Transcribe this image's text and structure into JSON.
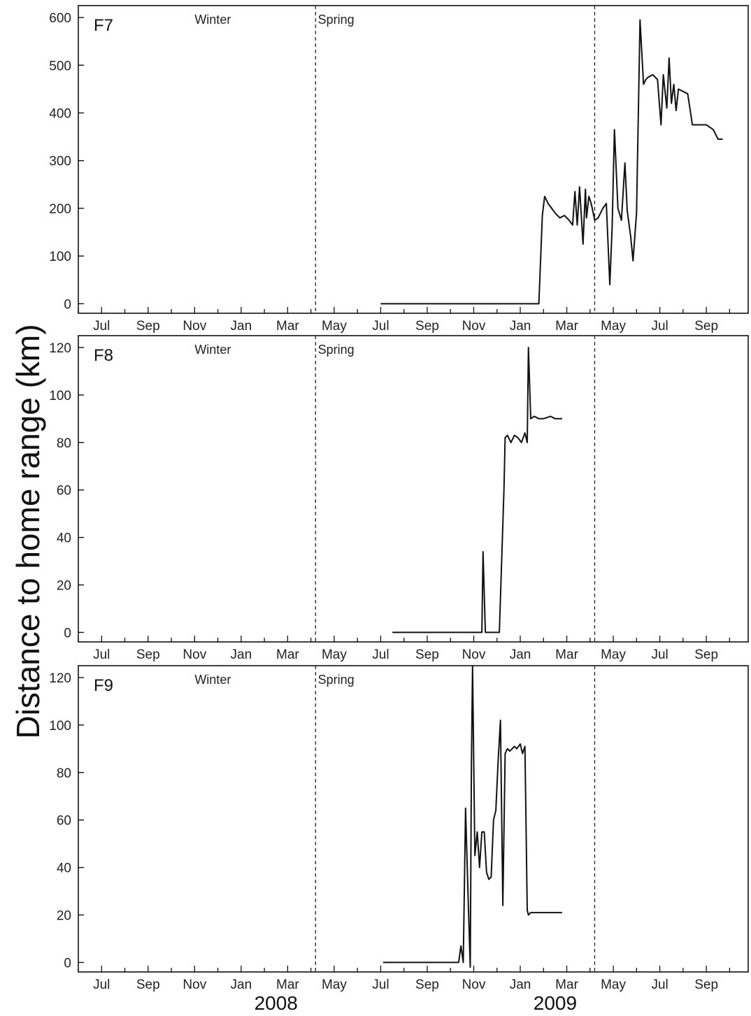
{
  "chart_data": {
    "type": "line",
    "ylabel": "Distance to home range (km)",
    "years": [
      {
        "label": "2008",
        "center_month": 8.5
      },
      {
        "label": "2009",
        "center_month": 20.5
      }
    ],
    "x_month_ticks": [
      "Jul",
      "Sep",
      "Nov",
      "Jan",
      "Mar",
      "May",
      "Jul",
      "Sep",
      "Nov",
      "Jan",
      "Mar",
      "May",
      "Jul",
      "Sep"
    ],
    "x_month_tick_positions": [
      1,
      3,
      5,
      7,
      9,
      11,
      13,
      15,
      17,
      19,
      21,
      23,
      25,
      27
    ],
    "xlim": [
      0,
      28.8
    ],
    "season_dividers": [
      10.2,
      22.2
    ],
    "season_labels": [
      {
        "text": "Winter",
        "x": 5.0
      },
      {
        "text": "Spring",
        "x": 10.3
      }
    ],
    "panels": [
      {
        "name": "F7",
        "ylim": [
          -20,
          625
        ],
        "yticks": [
          0,
          100,
          200,
          300,
          400,
          500,
          600
        ],
        "series": [
          {
            "x": [
              13.0,
              15.0,
              17.0,
              19.0,
              19.8,
              19.95,
              20.05,
              20.2,
              20.35,
              20.5,
              20.7,
              20.9,
              21.1,
              21.25,
              21.35,
              21.45,
              21.55,
              21.7,
              21.8,
              21.85,
              21.95,
              22.05,
              22.2,
              22.35,
              22.55,
              22.7,
              22.85,
              22.95,
              23.05,
              23.2,
              23.35,
              23.5,
              23.6,
              23.75,
              23.85,
              24.0,
              24.15,
              24.3,
              24.4,
              24.5,
              24.7,
              24.9,
              25.05,
              25.15,
              25.3,
              25.4,
              25.5,
              25.6,
              25.7,
              25.8,
              26.0,
              26.2,
              26.4,
              26.6,
              26.8,
              27.0,
              27.3,
              27.5,
              27.7
            ],
            "y": [
              0,
              0,
              0,
              0,
              0,
              185,
              225,
              210,
              200,
              190,
              180,
              185,
              175,
              165,
              235,
              165,
              245,
              125,
              240,
              180,
              225,
              210,
              175,
              180,
              200,
              210,
              40,
              160,
              365,
              200,
              175,
              295,
              195,
              140,
              90,
              190,
              595,
              460,
              470,
              475,
              480,
              470,
              375,
              480,
              410,
              515,
              420,
              460,
              405,
              450,
              445,
              440,
              375,
              375,
              375,
              375,
              365,
              345,
              345
            ]
          }
        ]
      },
      {
        "name": "F8",
        "ylim": [
          -4,
          125
        ],
        "yticks": [
          0,
          20,
          40,
          60,
          80,
          100,
          120
        ],
        "series": [
          {
            "x": [
              13.5,
              14.0,
              14.5,
              15.0,
              15.5,
              16.0,
              16.5,
              17.0,
              17.35,
              17.4,
              17.5,
              17.6,
              17.8,
              18.0,
              18.1,
              18.2,
              18.3,
              18.35,
              18.45,
              18.6,
              18.75,
              18.9,
              19.05,
              19.2,
              19.3,
              19.35,
              19.45,
              19.6,
              19.8,
              20.0,
              20.3,
              20.5,
              20.8
            ],
            "y": [
              0,
              0,
              0,
              0,
              0,
              0,
              0,
              0,
              0,
              34,
              0,
              0,
              0,
              0,
              0,
              30,
              60,
              82,
              83,
              80,
              83,
              82,
              80,
              84,
              80,
              120,
              90,
              91,
              90,
              90,
              91,
              90,
              90
            ]
          }
        ]
      },
      {
        "name": "F9",
        "ylim": [
          -4,
          125
        ],
        "yticks": [
          0,
          20,
          40,
          60,
          80,
          100,
          120
        ],
        "series": [
          {
            "x": [
              13.1,
              13.5,
              14.0,
              14.5,
              15.0,
              15.5,
              16.0,
              16.35,
              16.45,
              16.55,
              16.65,
              16.75,
              16.85,
              16.9,
              16.95,
              17.05,
              17.15,
              17.25,
              17.35,
              17.45,
              17.55,
              17.65,
              17.75,
              17.85,
              17.95,
              18.05,
              18.15,
              18.25,
              18.35,
              18.45,
              18.55,
              18.65,
              18.75,
              18.85,
              19.0,
              19.1,
              19.2,
              19.3,
              19.35,
              19.45,
              19.6,
              19.8,
              20.0,
              20.2,
              20.5,
              20.8
            ],
            "y": [
              0,
              0,
              0,
              0,
              0,
              0,
              0,
              0,
              7,
              0,
              65,
              30,
              -2,
              84,
              125,
              45,
              55,
              40,
              55,
              55,
              38,
              35,
              36,
              60,
              64,
              85,
              102,
              24,
              88,
              90,
              89,
              90,
              91,
              90,
              92,
              88,
              91,
              22,
              20,
              21,
              21,
              21,
              21,
              21,
              21,
              21
            ]
          }
        ]
      }
    ]
  }
}
